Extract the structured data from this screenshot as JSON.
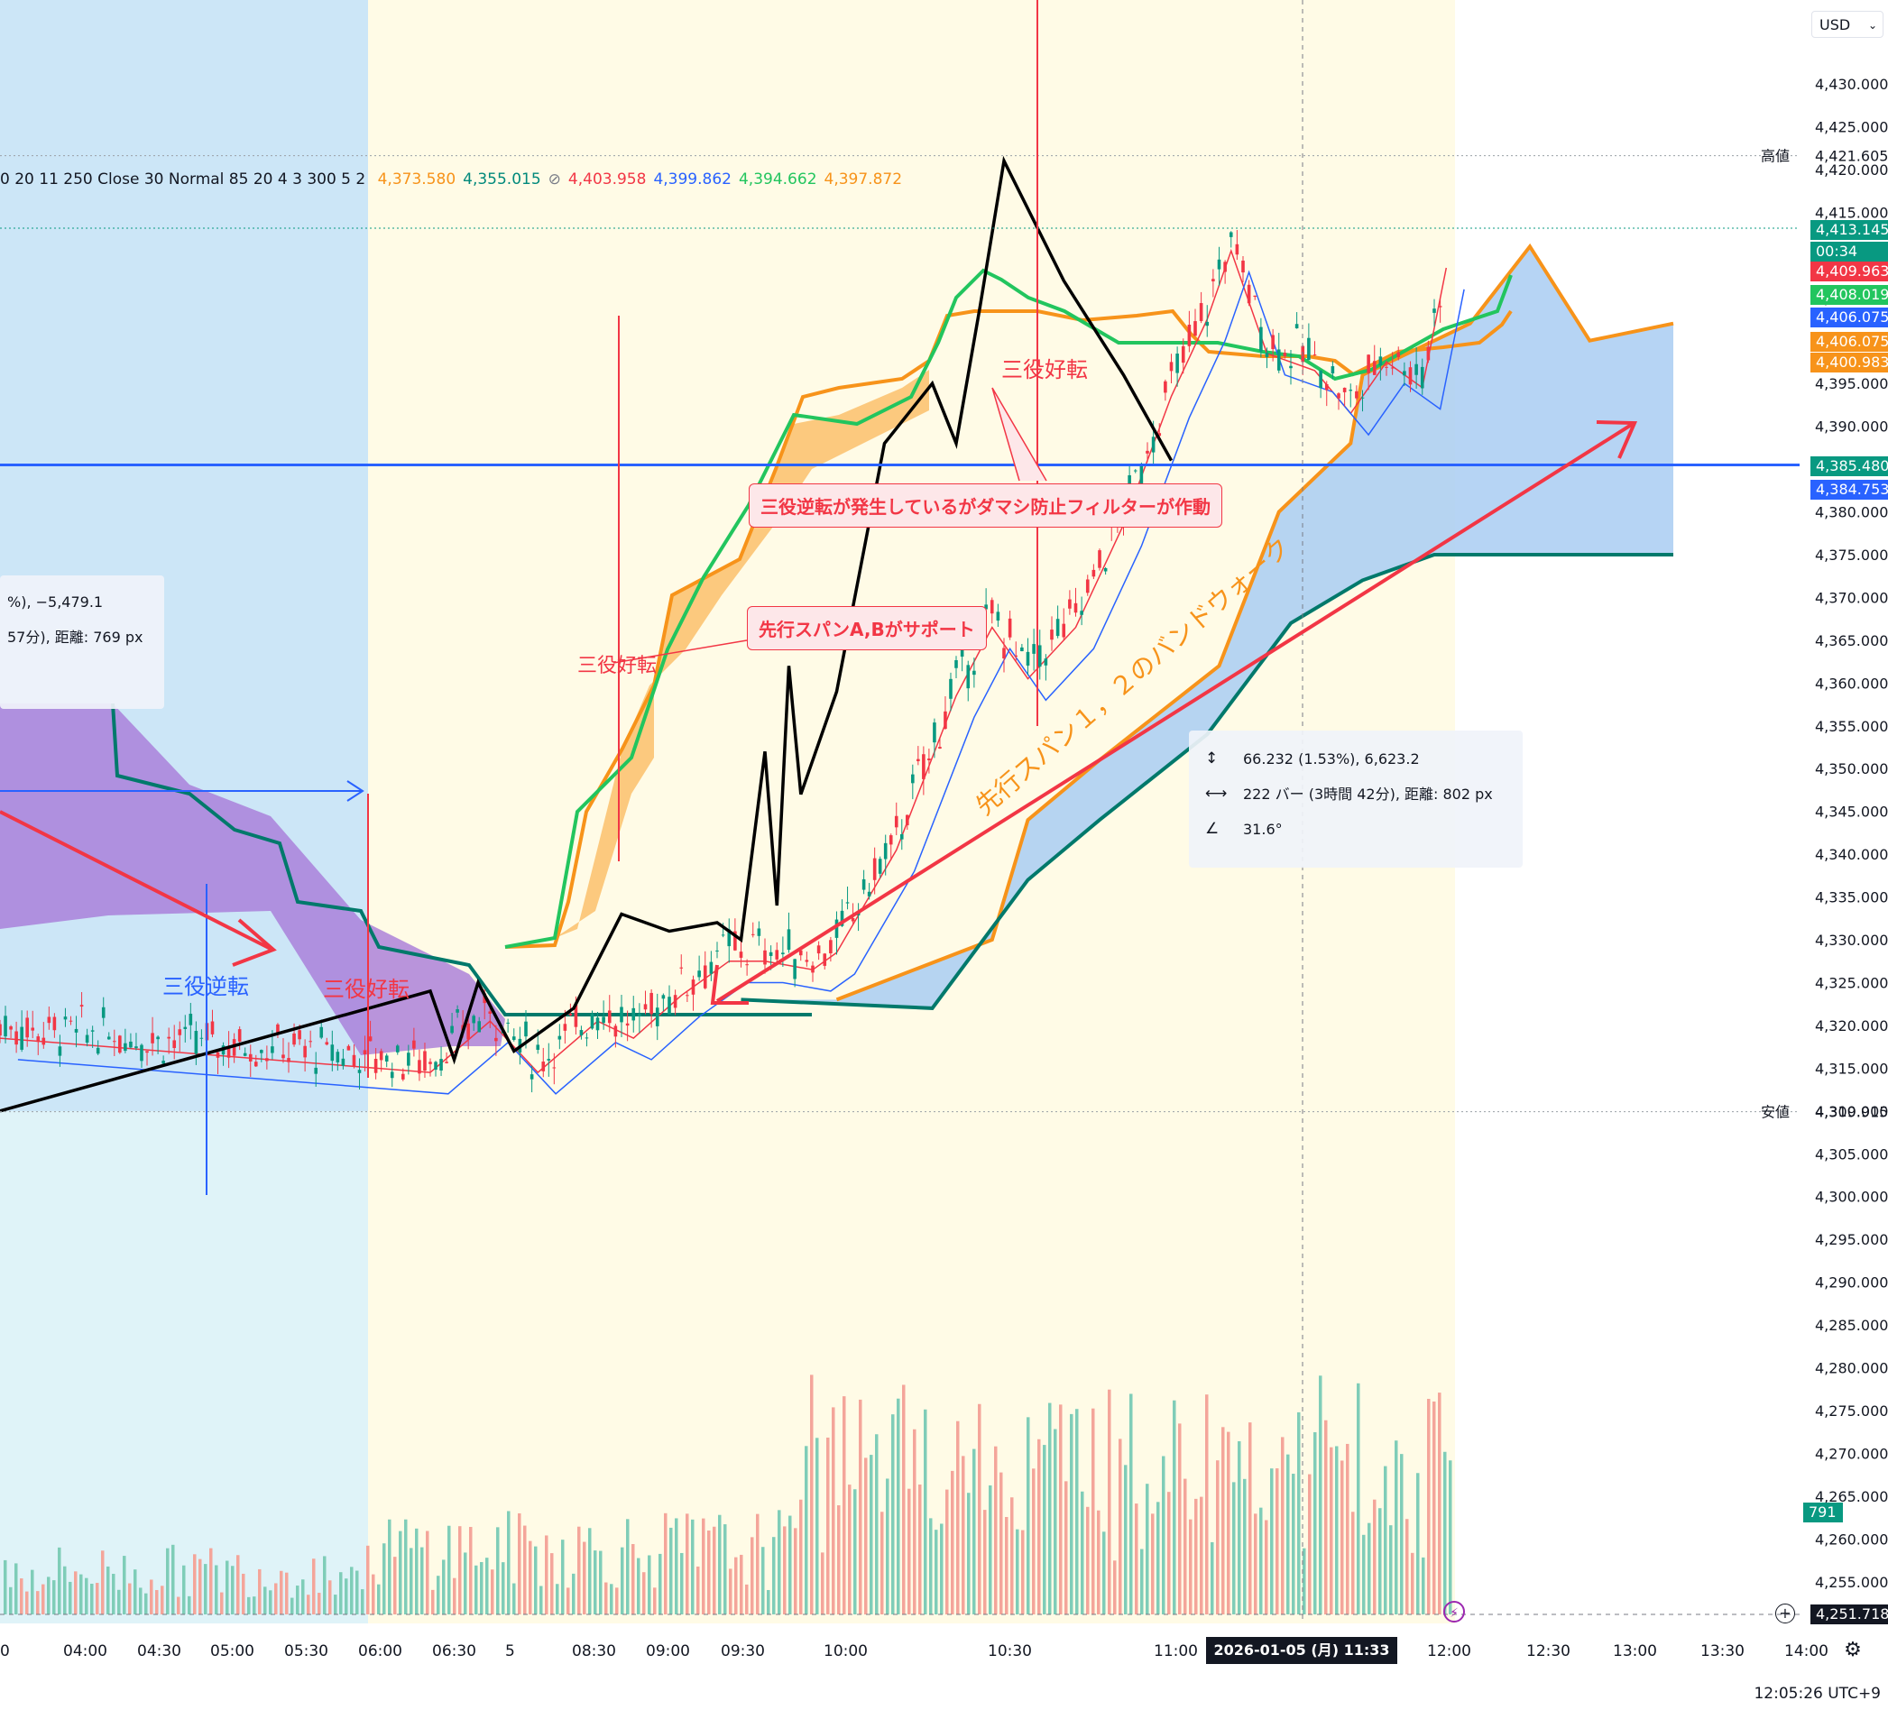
{
  "header": {
    "indicator_text": "0 20 11 250 Close 30 Normal 85 20 4 3 300 5 2",
    "values": [
      {
        "text": "4,373.580",
        "color": "#f7931a"
      },
      {
        "text": "4,355.015",
        "color": "#00897b"
      },
      {
        "text": "⊘",
        "color": "#787b86"
      },
      {
        "text": "4,403.958",
        "color": "#f23645"
      },
      {
        "text": "4,399.862",
        "color": "#2962ff"
      },
      {
        "text": "4,394.662",
        "color": "#22c55e"
      },
      {
        "text": "4,397.872",
        "color": "#f7931a"
      }
    ]
  },
  "currency": "USD",
  "price_axis": {
    "ticks": [
      "4,430.000",
      "4,425.000",
      "4,420.000",
      "4,415.000",
      "4,410.000",
      "4,405.000",
      "4,400.000",
      "4,395.000",
      "4,390.000",
      "4,385.000",
      "4,380.000",
      "4,375.000",
      "4,370.000",
      "4,365.000",
      "4,360.000",
      "4,355.000",
      "4,350.000",
      "4,345.000",
      "4,340.000",
      "4,335.000",
      "4,330.000",
      "4,325.000",
      "4,320.000",
      "4,315.000",
      "4,310.000",
      "4,305.000",
      "4,300.000",
      "4,295.000",
      "4,290.000",
      "4,285.000",
      "4,280.000",
      "4,275.000",
      "4,270.000",
      "4,265.000",
      "4,260.000",
      "4,255.000"
    ],
    "high_label": "高値",
    "high_value": "4,421.605",
    "low_label": "安値",
    "low_value": "4,309.915",
    "badges": [
      {
        "text": "4,413.145",
        "color": "#089981"
      },
      {
        "text": "00:34",
        "color": "#089981"
      },
      {
        "text": "4,409.963",
        "color": "#f23645"
      },
      {
        "text": "4,408.019",
        "color": "#22c55e"
      },
      {
        "text": "4,406.075",
        "color": "#2962ff"
      },
      {
        "text": "4,406.075",
        "color": "#f7931a"
      },
      {
        "text": "4,400.983",
        "color": "#f7931a"
      },
      {
        "text": "4,385.480",
        "color": "#089981"
      },
      {
        "text": "4,384.753",
        "color": "#2962ff"
      }
    ],
    "volume_badge": "791",
    "bottom_value": "4,251.718"
  },
  "time_axis": {
    "labels": [
      "0",
      "04:00",
      "04:30",
      "05:00",
      "05:30",
      "06:00",
      "06:30",
      "5",
      "08:30",
      "09:00",
      "09:30",
      "10:00",
      "10:30",
      "11:00",
      "12:00",
      "12:30",
      "13:00",
      "13:30",
      "14:00"
    ],
    "cursor_label": "2026-01-05 (月)   11:33",
    "clock": "12:05:26 UTC+9"
  },
  "annotations": {
    "note1": "三役逆転が発生しているがダマシ防止フィルターが作動",
    "note2": "先行スパンA,Bがサポート",
    "band_walk": "先行スパン１，２のバンドウォーク",
    "sanyaku_gyakuten": "三役逆転",
    "sanyaku_kouten_1": "三役好転",
    "sanyaku_kouten_2": "三役好転",
    "sanyaku_kouten_3": "三役好転"
  },
  "measure_tool_1": {
    "line1": "66.232 (1.53%), 6,623.2",
    "line2": "222 バー (3時間 42分), 距離: 802 px",
    "line3": "31.6°"
  },
  "measure_tool_2": {
    "line1": "%), −5,479.1",
    "line2": "57分), 距離: 769 px"
  },
  "chart_data": {
    "type": "candlestick",
    "instrument_currency": "USD",
    "price_range": [
      4251,
      4433
    ],
    "high": 4421.605,
    "low": 4309.915,
    "last_price": 4413.145,
    "horizontal_line": 4385.48,
    "close_path": [
      [
        0,
        4320
      ],
      [
        3.6,
        4316
      ],
      [
        4.1,
        4322
      ],
      [
        4.5,
        4316
      ],
      [
        5.0,
        4322
      ],
      [
        5.3,
        4320
      ],
      [
        5.7,
        4325
      ],
      [
        6.1,
        4329
      ],
      [
        6.4,
        4329
      ],
      [
        6.8,
        4328
      ],
      [
        7.0,
        4330
      ],
      [
        7.5,
        4342
      ],
      [
        8.0,
        4360
      ],
      [
        8.3,
        4368
      ],
      [
        8.6,
        4362
      ],
      [
        9.0,
        4368
      ],
      [
        9.4,
        4380
      ],
      [
        9.8,
        4395
      ],
      [
        10.1,
        4404
      ],
      [
        10.3,
        4412
      ],
      [
        10.6,
        4400
      ],
      [
        11.0,
        4398
      ],
      [
        11.3,
        4393
      ],
      [
        11.6,
        4399
      ],
      [
        11.9,
        4396
      ],
      [
        12.1,
        4410
      ]
    ],
    "zigzag": [
      [
        0,
        4310
      ],
      [
        3.6,
        4324
      ],
      [
        3.8,
        4316
      ],
      [
        4.0,
        4325
      ],
      [
        4.3,
        4317
      ],
      [
        4.8,
        4322
      ],
      [
        5.2,
        4333
      ],
      [
        5.6,
        4331
      ],
      [
        6.0,
        4332
      ],
      [
        6.2,
        4330
      ],
      [
        6.4,
        4352
      ],
      [
        6.5,
        4334
      ],
      [
        6.6,
        4362
      ],
      [
        6.7,
        4347
      ],
      [
        7.0,
        4359
      ],
      [
        7.4,
        4388
      ],
      [
        7.8,
        4395
      ],
      [
        8.0,
        4388
      ],
      [
        8.2,
        4404
      ],
      [
        8.4,
        4421
      ],
      [
        8.9,
        4407
      ],
      [
        9.4,
        4396
      ],
      [
        9.8,
        4386
      ]
    ],
    "senkou_a_future": [
      [
        7.0,
        4323
      ],
      [
        8.3,
        4330
      ],
      [
        8.6,
        4344
      ],
      [
        9.2,
        4351
      ],
      [
        10.2,
        4362
      ],
      [
        10.7,
        4380
      ],
      [
        11.3,
        4388
      ],
      [
        11.4,
        4396
      ],
      [
        12.3,
        4402
      ],
      [
        12.8,
        4411
      ],
      [
        13.3,
        4400
      ],
      [
        14.0,
        4402
      ]
    ],
    "senkou_b_future": [
      [
        6.2,
        4323
      ],
      [
        7.8,
        4322
      ],
      [
        8.6,
        4337
      ],
      [
        9.2,
        4344
      ],
      [
        10.1,
        4354
      ],
      [
        10.8,
        4367
      ],
      [
        11.4,
        4372
      ],
      [
        12.0,
        4375
      ],
      [
        14.0,
        4375
      ]
    ],
    "volume_note": "volume bars, last visible volume 791"
  }
}
